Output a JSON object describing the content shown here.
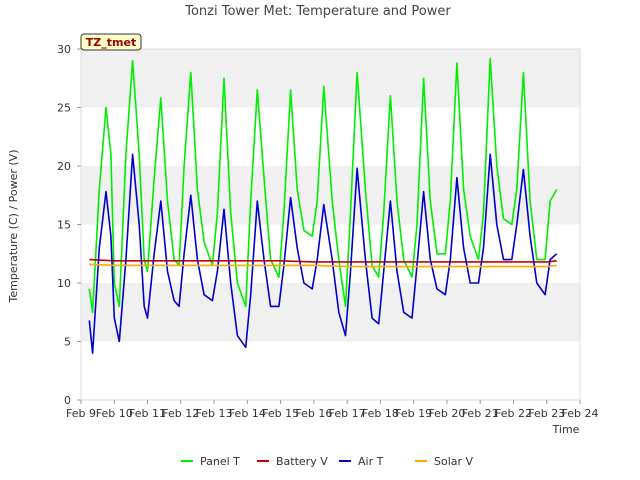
{
  "chart_data": {
    "type": "line",
    "title": "Tonzi Tower Met: Temperature and Power",
    "xlabel": "Time",
    "ylabel": "Temperature (C) / Power (V)",
    "tag": "TZ_tmet",
    "ylim": [
      0,
      30
    ],
    "yticks": [
      0,
      5,
      10,
      15,
      20,
      25,
      30
    ],
    "xlim": [
      9,
      24
    ],
    "xticks": [
      9,
      10,
      11,
      12,
      13,
      14,
      15,
      16,
      17,
      18,
      19,
      20,
      21,
      22,
      23,
      24
    ],
    "xtick_labels": [
      "Feb 9",
      "Feb 10",
      "Feb 11",
      "Feb 12",
      "Feb 13",
      "Feb 14",
      "Feb 15",
      "Feb 16",
      "Feb 17",
      "Feb 18",
      "Feb 19",
      "Feb 20",
      "Feb 21",
      "Feb 22",
      "Feb 23",
      "Feb 24"
    ],
    "grid": "horizontal bands",
    "legend_position": "bottom",
    "series": [
      {
        "name": "Panel T",
        "color": "#00ee00",
        "x": [
          9.25,
          9.35,
          9.55,
          9.75,
          9.9,
          10.0,
          10.15,
          10.35,
          10.55,
          10.75,
          10.9,
          11.0,
          11.2,
          11.4,
          11.6,
          11.8,
          11.95,
          12.1,
          12.3,
          12.5,
          12.7,
          12.95,
          13.1,
          13.3,
          13.5,
          13.7,
          13.95,
          14.1,
          14.3,
          14.5,
          14.7,
          14.95,
          15.1,
          15.3,
          15.5,
          15.7,
          15.95,
          16.1,
          16.3,
          16.55,
          16.75,
          16.95,
          17.1,
          17.3,
          17.55,
          17.75,
          17.95,
          18.1,
          18.3,
          18.5,
          18.7,
          18.95,
          19.1,
          19.3,
          19.5,
          19.7,
          19.95,
          20.1,
          20.3,
          20.5,
          20.7,
          20.95,
          21.1,
          21.3,
          21.5,
          21.7,
          21.95,
          22.1,
          22.3,
          22.5,
          22.7,
          22.95,
          23.1,
          23.3
        ],
        "y": [
          9.5,
          7.5,
          18.0,
          25.0,
          21.0,
          10.0,
          8.0,
          21.0,
          29.0,
          21.0,
          12.0,
          11.0,
          19.0,
          25.8,
          17.0,
          12.0,
          11.5,
          20.0,
          28.0,
          18.0,
          13.5,
          11.5,
          16.0,
          27.5,
          16.0,
          10.0,
          8.0,
          17.0,
          26.5,
          19.0,
          12.0,
          10.5,
          16.0,
          26.5,
          18.0,
          14.5,
          14.0,
          17.0,
          26.8,
          17.0,
          12.0,
          8.0,
          16.0,
          28.0,
          18.0,
          11.5,
          10.5,
          16.0,
          26.0,
          17.0,
          12.0,
          10.5,
          15.0,
          27.5,
          17.0,
          12.5,
          12.5,
          17.0,
          28.8,
          18.0,
          14.0,
          12.0,
          16.0,
          29.2,
          20.0,
          15.5,
          15.0,
          18.0,
          28.0,
          17.0,
          12.0,
          12.0,
          17.0,
          18.0
        ]
      },
      {
        "name": "Battery V",
        "color": "#cc0000",
        "x": [
          9.25,
          10.0,
          11.0,
          12.0,
          13.0,
          14.0,
          15.0,
          16.0,
          17.0,
          18.0,
          19.0,
          20.0,
          21.0,
          22.0,
          23.0,
          23.3
        ],
        "y": [
          12.0,
          11.9,
          11.9,
          11.9,
          11.9,
          11.9,
          11.9,
          11.8,
          11.8,
          11.8,
          11.8,
          11.8,
          11.8,
          11.8,
          11.8,
          11.9
        ]
      },
      {
        "name": "Air T",
        "color": "#0000cc",
        "x": [
          9.25,
          9.35,
          9.55,
          9.75,
          9.9,
          10.0,
          10.15,
          10.35,
          10.55,
          10.75,
          10.9,
          11.0,
          11.2,
          11.4,
          11.6,
          11.8,
          11.95,
          12.1,
          12.3,
          12.5,
          12.7,
          12.95,
          13.1,
          13.3,
          13.5,
          13.7,
          13.95,
          14.1,
          14.3,
          14.5,
          14.7,
          14.95,
          15.1,
          15.3,
          15.5,
          15.7,
          15.95,
          16.1,
          16.3,
          16.55,
          16.75,
          16.95,
          17.1,
          17.3,
          17.55,
          17.75,
          17.95,
          18.1,
          18.3,
          18.5,
          18.7,
          18.95,
          19.1,
          19.3,
          19.5,
          19.7,
          19.95,
          20.1,
          20.3,
          20.5,
          20.7,
          20.95,
          21.1,
          21.3,
          21.5,
          21.7,
          21.95,
          22.1,
          22.3,
          22.5,
          22.7,
          22.95,
          23.1,
          23.3
        ],
        "y": [
          6.8,
          4.0,
          13.0,
          17.8,
          14.0,
          7.0,
          5.0,
          12.0,
          21.0,
          15.0,
          8.0,
          7.0,
          12.5,
          17.0,
          11.0,
          8.5,
          8.0,
          12.5,
          17.5,
          12.0,
          9.0,
          8.5,
          11.0,
          16.3,
          10.0,
          5.5,
          4.5,
          9.0,
          17.0,
          12.0,
          8.0,
          8.0,
          11.5,
          17.3,
          13.0,
          10.0,
          9.5,
          12.0,
          16.7,
          12.0,
          7.5,
          5.5,
          11.0,
          19.8,
          12.0,
          7.0,
          6.5,
          11.0,
          17.0,
          11.0,
          7.5,
          7.0,
          11.5,
          17.8,
          12.0,
          9.5,
          9.0,
          12.0,
          19.0,
          13.0,
          10.0,
          10.0,
          13.0,
          21.0,
          15.0,
          12.0,
          12.0,
          15.0,
          19.7,
          14.0,
          10.0,
          9.0,
          12.0,
          12.5
        ]
      },
      {
        "name": "Solar V",
        "color": "#ffaa00",
        "x": [
          9.25,
          10.0,
          11.0,
          12.0,
          13.0,
          14.0,
          15.0,
          16.0,
          17.0,
          18.0,
          19.0,
          20.0,
          21.0,
          22.0,
          23.0,
          23.3
        ],
        "y": [
          11.6,
          11.5,
          11.5,
          11.5,
          11.5,
          11.5,
          11.5,
          11.5,
          11.4,
          11.4,
          11.4,
          11.4,
          11.4,
          11.4,
          11.4,
          11.5
        ]
      }
    ]
  }
}
